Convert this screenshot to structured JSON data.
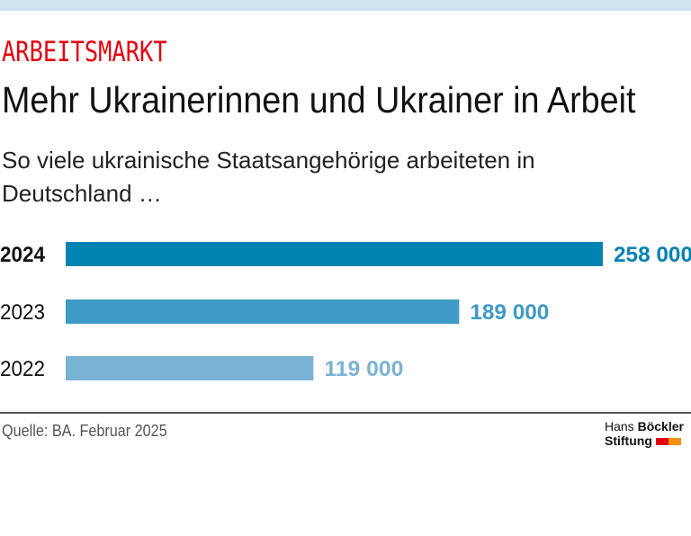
{
  "header": {
    "kicker": "ARBEITSMARKT",
    "title": "Mehr Ukrainerinnen und Ukrainer in Arbeit",
    "subtitle": "So viele ukrainische Staatsangehörige arbeiteten in Deutschland …"
  },
  "footer": {
    "source": "Quelle: BA. Februar 2025",
    "logo_line1_a": "Hans",
    "logo_line1_b": "Böckler",
    "logo_line2": "Stiftung"
  },
  "colors": {
    "accent": "#e3000f",
    "logo_orange": "#f39200"
  },
  "chart_data": {
    "type": "bar",
    "orientation": "horizontal",
    "categories": [
      "2024",
      "2023",
      "2022"
    ],
    "values": [
      258000,
      189000,
      119000
    ],
    "labels": [
      "258 000",
      "189 000",
      "119 000"
    ],
    "colors": [
      "#0083b0",
      "#3e9ac6",
      "#7ab3d4"
    ],
    "highlight": "2024",
    "xlim": [
      0,
      258000
    ],
    "grid": false
  }
}
